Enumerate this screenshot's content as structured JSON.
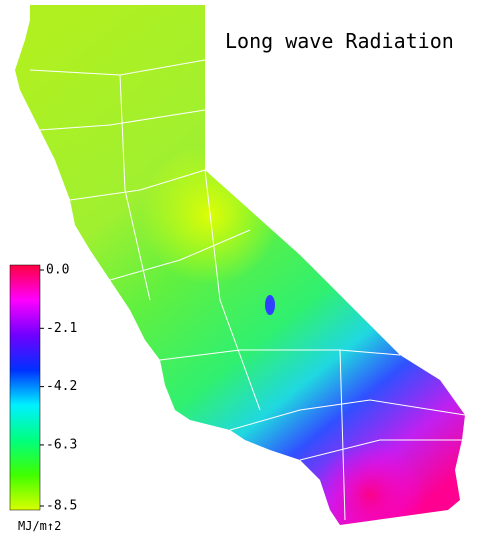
{
  "title": "Long wave Radiation",
  "colorbar": {
    "range": [
      -8.5,
      0
    ],
    "ticks": [
      {
        "value": 0,
        "label": "0.0"
      },
      -2.1,
      -4.2,
      -6.3,
      -8.5
    ],
    "colors": [
      "#d8ff00",
      "#40ff00",
      "#00ff80",
      "#00f0ff",
      "#0030ff",
      "#7000ff",
      "#ff00ff",
      "#ff0040"
    ],
    "unit": "MJ/m↑2"
  }
}
